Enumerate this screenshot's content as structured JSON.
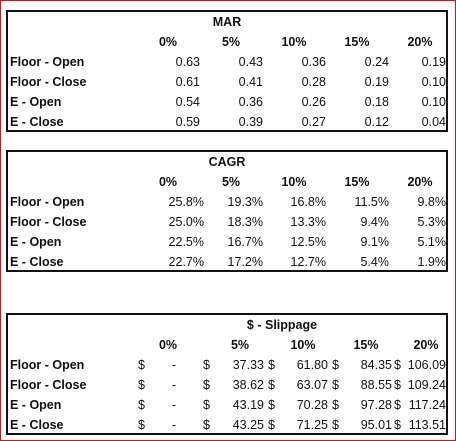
{
  "tables": [
    {
      "title": "MAR",
      "headers": [
        "0%",
        "5%",
        "10%",
        "15%",
        "20%"
      ],
      "rows": [
        {
          "label": "Floor - Open",
          "values": [
            "0.63",
            "0.43",
            "0.36",
            "0.24",
            "0.19"
          ]
        },
        {
          "label": "Floor - Close",
          "values": [
            "0.61",
            "0.41",
            "0.28",
            "0.19",
            "0.10"
          ]
        },
        {
          "label": "E - Open",
          "values": [
            "0.54",
            "0.36",
            "0.26",
            "0.18",
            "0.10"
          ]
        },
        {
          "label": "E - Close",
          "values": [
            "0.59",
            "0.39",
            "0.27",
            "0.12",
            "0.04"
          ]
        }
      ]
    },
    {
      "title": "CAGR",
      "headers": [
        "0%",
        "5%",
        "10%",
        "15%",
        "20%"
      ],
      "rows": [
        {
          "label": "Floor - Open",
          "values": [
            "25.8%",
            "19.3%",
            "16.8%",
            "11.5%",
            "9.8%"
          ]
        },
        {
          "label": "Floor - Close",
          "values": [
            "25.0%",
            "18.3%",
            "13.3%",
            "9.4%",
            "5.3%"
          ]
        },
        {
          "label": "E - Open",
          "values": [
            "22.5%",
            "16.7%",
            "12.5%",
            "9.1%",
            "5.1%"
          ]
        },
        {
          "label": "E - Close",
          "values": [
            "22.7%",
            "17.2%",
            "12.7%",
            "5.4%",
            "1.9%"
          ]
        }
      ]
    },
    {
      "title": "$ - Slippage",
      "headers": [
        "0%",
        "5%",
        "10%",
        "15%",
        "20%"
      ],
      "currency": "$",
      "rows": [
        {
          "label": "Floor - Open",
          "values": [
            "-",
            "37.33",
            "61.80",
            "84.35",
            "106.09"
          ]
        },
        {
          "label": "Floor - Close",
          "values": [
            "-",
            "38.62",
            "63.07",
            "88.55",
            "109.24"
          ]
        },
        {
          "label": "E - Open",
          "values": [
            "-",
            "43.19",
            "70.28",
            "97.28",
            "117.24"
          ]
        },
        {
          "label": "E - Close",
          "values": [
            "-",
            "43.25",
            "71.25",
            "95.01",
            "113.51"
          ]
        }
      ]
    }
  ]
}
